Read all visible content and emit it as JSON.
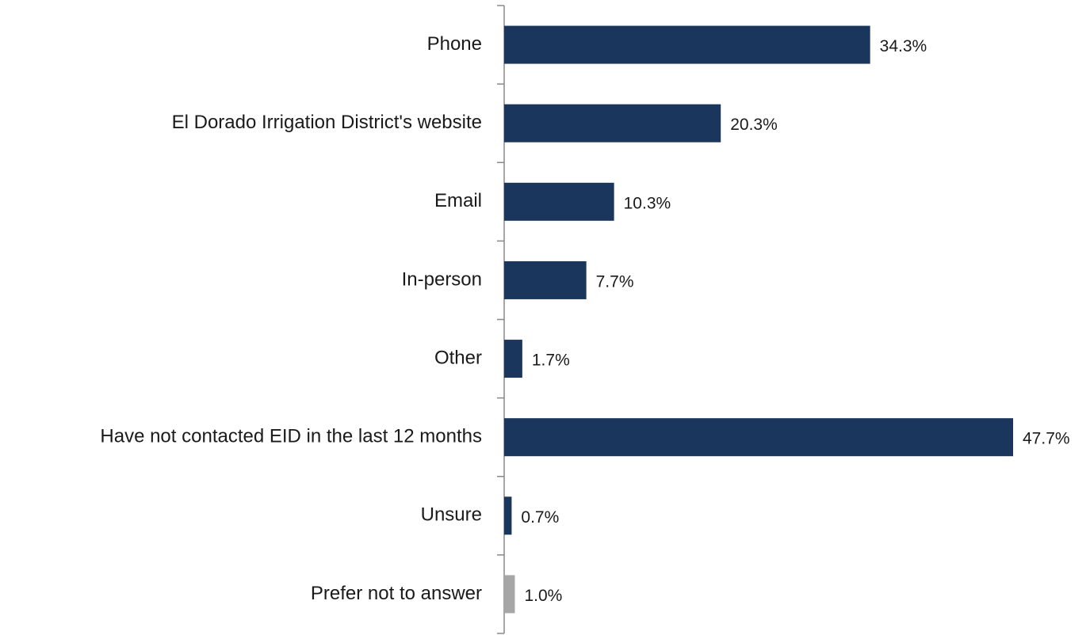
{
  "chart_data": {
    "type": "bar",
    "orientation": "horizontal",
    "categories": [
      "Phone",
      "El Dorado Irrigation District's website",
      "Email",
      "In-person",
      "Other",
      "Have not contacted EID in the last 12 months",
      "Unsure",
      "Prefer not to answer"
    ],
    "values": [
      34.3,
      20.3,
      10.3,
      7.7,
      1.7,
      47.7,
      0.7,
      1.0
    ],
    "value_labels": [
      "34.3%",
      "20.3%",
      "10.3%",
      "7.7%",
      "1.7%",
      "47.7%",
      "0.7%",
      "1.0%"
    ],
    "colors": [
      "#1b365d",
      "#1b365d",
      "#1b365d",
      "#1b365d",
      "#1b365d",
      "#1b365d",
      "#1b365d",
      "#a6a6a6"
    ]
  }
}
